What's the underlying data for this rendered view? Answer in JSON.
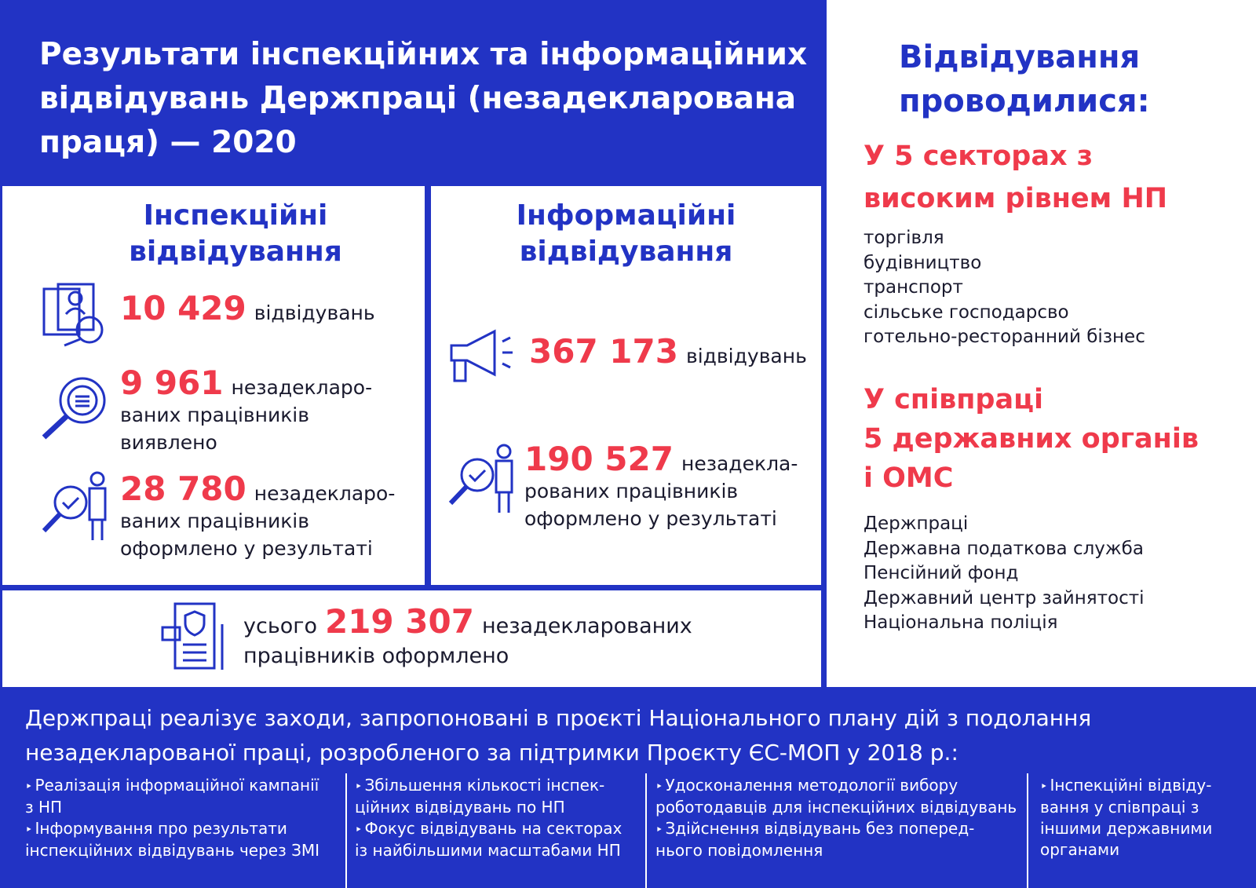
{
  "header": {
    "title": [
      "Результати інспекційних та інформаційних",
      "відвідувань Держпраці (незадекларована",
      "праця) — 2020"
    ]
  },
  "inspection": {
    "title": [
      "Інспекційні",
      "відвідування"
    ],
    "stats": [
      {
        "number": "10 429",
        "lines": [
          "відвідувань"
        ]
      },
      {
        "number": "9 961",
        "lines": [
          "незадекларо-",
          "ваних працівників",
          "виявлено"
        ]
      },
      {
        "number": "28 780",
        "lines": [
          "незадекларо-",
          "ваних працівників",
          "оформлено у результаті"
        ]
      }
    ]
  },
  "information": {
    "title": [
      "Інформаційні",
      "відвідування"
    ],
    "stats": [
      {
        "number": "367 173",
        "lines": [
          "відвідувань"
        ]
      },
      {
        "number": "190 527",
        "lines": [
          "незадекла-",
          "рованих працівників",
          "оформлено у результаті"
        ]
      }
    ]
  },
  "total": {
    "prefix": "усього",
    "number": "219 307",
    "lines": [
      "незадекларованих",
      "працівників оформлено"
    ]
  },
  "sidebar": {
    "title": [
      "Відвідування",
      "проводилися:"
    ],
    "sectors": {
      "title": [
        "У 5 секторах з",
        "високим рівнем НП"
      ],
      "items": [
        "торгівля",
        "будівництво",
        "транспорт",
        "сільське господарсво",
        "готельно-ресторанний бізнес"
      ]
    },
    "partners": {
      "title": [
        "У співпраці",
        "5 державних органів",
        "і ОМС"
      ],
      "items": [
        "Держпраці",
        "Державна податкова служба",
        "Пенсійний фонд",
        "Державний центр зайнятості",
        "Національна поліція"
      ]
    }
  },
  "footer": {
    "intro": [
      "Держпраці реалізує заходи, запропоновані в проєкті Національного плану дій з подолання",
      "незадекларованої праці, розробленого за підтримки Проєкту ЄС-МОП у 2018 р.:"
    ],
    "columns": [
      [
        [
          "Реалізація інформаційної кампанії",
          "з НП"
        ],
        [
          "Інформування про результати",
          "інспекційних відвідувань через ЗМІ"
        ]
      ],
      [
        [
          "Збільшення кількості інспек-",
          "ційних відвідувань по НП"
        ],
        [
          "Фокус відвідувань на секторах",
          "із найбільшими масштабами НП"
        ]
      ],
      [
        [
          "Удосконалення методології вибору",
          "роботодавців для інспекційних відвідувань"
        ],
        [
          "Здійснення відвідувань без поперед-",
          "нього повідомлення"
        ]
      ],
      [
        [
          "Інспекційні відвіду-",
          "вання у співпраці з",
          "іншими державними",
          "органами"
        ]
      ]
    ]
  }
}
